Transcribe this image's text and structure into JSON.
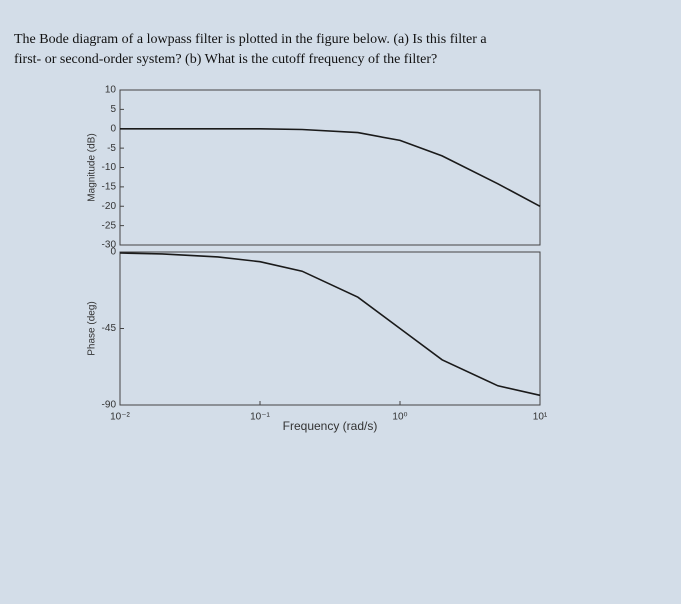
{
  "question": {
    "line1": "The Bode diagram of a lowpass filter is plotted in the figure below. (a) Is this filter a",
    "line2": "first- or second-order system? (b) What is the cutoff frequency of the filter?"
  },
  "chart_data": [
    {
      "type": "line",
      "ylabel": "Magnitude (dB)",
      "log_x": true,
      "x": [
        0.01,
        0.02,
        0.05,
        0.1,
        0.2,
        0.5,
        1,
        2,
        5,
        10
      ],
      "values": [
        0,
        0,
        0,
        0,
        -0.2,
        -1,
        -3,
        -7,
        -14.2,
        -20
      ],
      "color": "#1a1a1a",
      "xlim": [
        0.01,
        10
      ],
      "ylim": [
        -30,
        10
      ],
      "yticks": [
        10,
        5,
        0,
        -5,
        -10,
        -15,
        -20,
        -25,
        -30
      ]
    },
    {
      "type": "line",
      "ylabel": "Phase (deg)",
      "xlabel": "Frequency (rad/s)",
      "log_x": true,
      "x": [
        0.01,
        0.02,
        0.05,
        0.1,
        0.2,
        0.5,
        1,
        2,
        5,
        10
      ],
      "values": [
        -0.6,
        -1.1,
        -2.9,
        -5.7,
        -11.3,
        -26.6,
        -45,
        -63.4,
        -78.7,
        -84.3
      ],
      "color": "#1a1a1a",
      "xlim": [
        0.01,
        10
      ],
      "ylim": [
        -90,
        0
      ],
      "yticks": [
        0,
        -45,
        -90
      ],
      "xticks": [
        {
          "value": 0.01,
          "label": "10⁻²"
        },
        {
          "value": 0.1,
          "label": "10⁻¹"
        },
        {
          "value": 1,
          "label": "10⁰"
        },
        {
          "value": 10,
          "label": "10¹"
        }
      ]
    }
  ]
}
